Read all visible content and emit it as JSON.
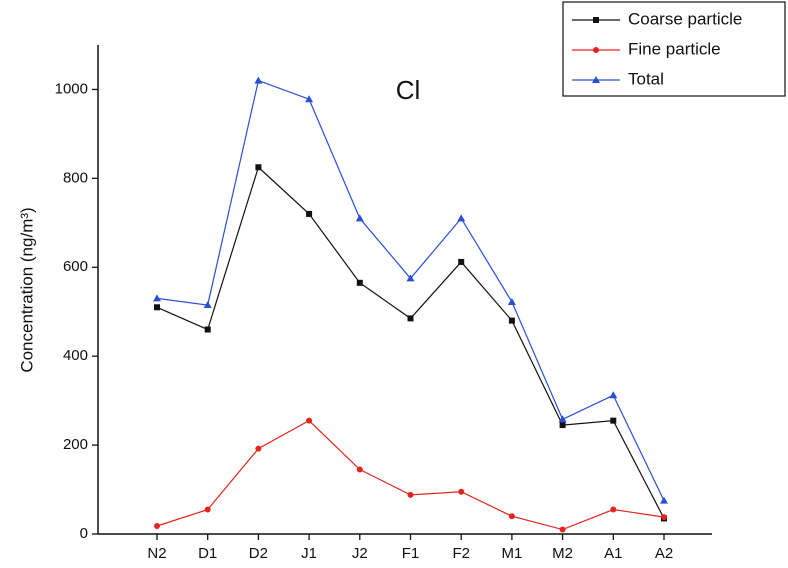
{
  "chart_data": {
    "type": "line",
    "annotation": "Cl",
    "y_label": "Concentration (ng/m³)",
    "categories": [
      "N2",
      "D1",
      "D2",
      "J1",
      "J2",
      "F1",
      "F2",
      "M1",
      "M2",
      "A1",
      "A2"
    ],
    "series": [
      {
        "name": "Coarse particle",
        "color": "#111111",
        "marker": "square",
        "values": [
          510,
          460,
          825,
          720,
          565,
          485,
          612,
          480,
          245,
          255,
          35
        ]
      },
      {
        "name": "Fine particle",
        "color": "#e0261f",
        "marker": "circle",
        "values": [
          18,
          55,
          192,
          255,
          145,
          88,
          95,
          40,
          10,
          55,
          38
        ]
      },
      {
        "name": "Total",
        "color": "#2a4fd6",
        "marker": "triangle",
        "values": [
          530,
          515,
          1020,
          978,
          710,
          575,
          710,
          522,
          258,
          312,
          75
        ]
      }
    ],
    "ylim": [
      0,
      1100
    ],
    "yticks": [
      0,
      200,
      400,
      600,
      800,
      1000
    ],
    "legend": "upper right"
  }
}
